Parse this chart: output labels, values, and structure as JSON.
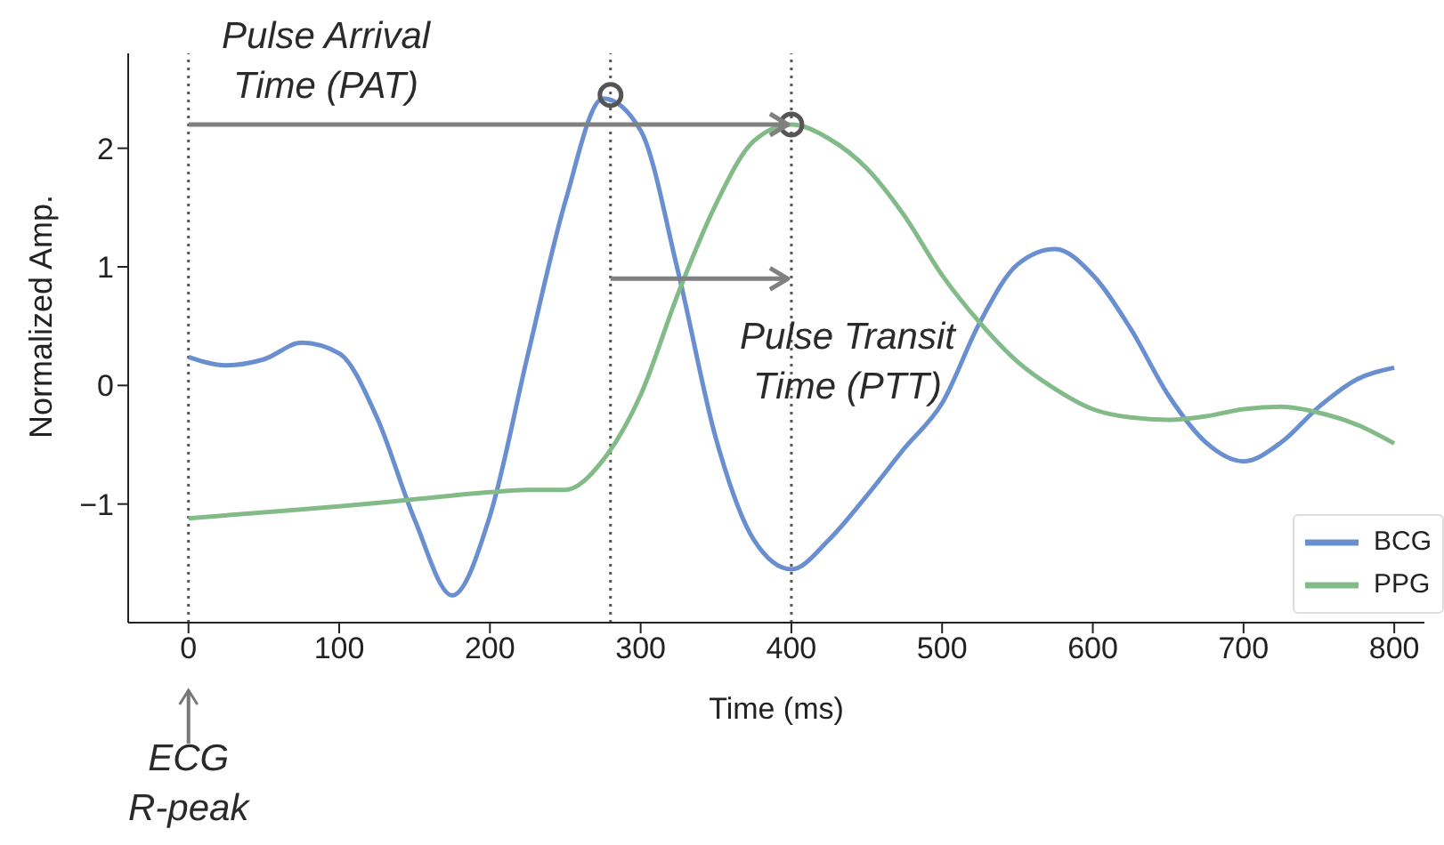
{
  "chart_data": {
    "type": "line",
    "xlabel": "Time (ms)",
    "ylabel": "Normalized Amp.",
    "xlim": [
      -40,
      820
    ],
    "xticks": [
      0,
      100,
      200,
      300,
      400,
      500,
      600,
      700,
      800
    ],
    "ylim": [
      -2.0,
      2.8
    ],
    "yticks": [
      -1,
      0,
      1,
      2
    ],
    "series": [
      {
        "name": "BCG",
        "color": "#6a8fd0",
        "x": [
          0,
          25,
          50,
          75,
          100,
          125,
          150,
          175,
          200,
          225,
          250,
          275,
          300,
          325,
          350,
          375,
          400,
          425,
          450,
          475,
          500,
          525,
          550,
          575,
          600,
          625,
          650,
          675,
          700,
          725,
          750,
          775,
          800
        ],
        "values": [
          0.24,
          0.17,
          0.22,
          0.36,
          0.27,
          -0.27,
          -1.13,
          -1.77,
          -1.1,
          0.25,
          1.55,
          2.42,
          2.15,
          0.95,
          -0.45,
          -1.3,
          -1.55,
          -1.3,
          -0.93,
          -0.53,
          -0.15,
          0.53,
          1.02,
          1.15,
          0.93,
          0.48,
          -0.08,
          -0.48,
          -0.64,
          -0.48,
          -0.18,
          0.05,
          0.15
        ]
      },
      {
        "name": "PPG",
        "color": "#82bb88",
        "x": [
          0,
          50,
          100,
          150,
          200,
          225,
          250,
          275,
          300,
          325,
          350,
          375,
          400,
          425,
          450,
          475,
          500,
          525,
          550,
          575,
          600,
          625,
          650,
          675,
          700,
          725,
          750,
          775,
          800
        ],
        "values": [
          -1.12,
          -1.07,
          -1.02,
          -0.96,
          -0.9,
          -0.88,
          -0.88,
          -0.63,
          -0.08,
          0.78,
          1.53,
          2.06,
          2.2,
          2.08,
          1.83,
          1.43,
          0.93,
          0.53,
          0.2,
          -0.03,
          -0.2,
          -0.27,
          -0.29,
          -0.26,
          -0.2,
          -0.18,
          -0.23,
          -0.33,
          -0.49
        ]
      },
      {
        "type": "scatter",
        "color": "#555555",
        "marker": "circle",
        "x": [
          280,
          400
        ],
        "values": [
          2.45,
          2.2
        ]
      }
    ],
    "ref_lines": [
      {
        "axis": "x",
        "value": 0,
        "color": "#555555",
        "line_style": "dotted"
      },
      {
        "axis": "x",
        "value": 280,
        "color": "#555555",
        "line_style": "dotted"
      },
      {
        "axis": "x",
        "value": 400,
        "color": "#555555",
        "line_style": "dotted"
      }
    ],
    "annotations": [
      "Pulse Arrival\nTime (PAT)",
      {
        "text": "Pulse Transit\nTime (PTT)",
        "x": 400,
        "y": 0.9
      },
      "ECG\nR-peak"
    ],
    "legend": "bottom right",
    "grid": false
  }
}
